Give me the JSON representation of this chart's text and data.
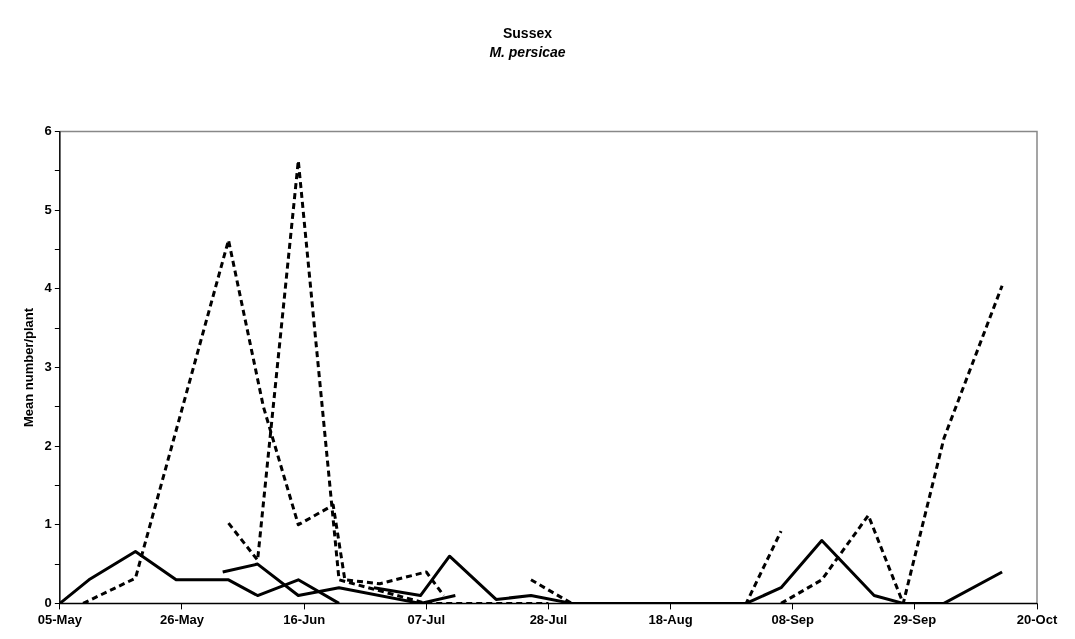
{
  "chart_data": {
    "type": "line",
    "title": "Sussex",
    "subtitle": "M. persicae",
    "ylabel": "Mean number/plant",
    "xlim": [
      "--05-05",
      "--10-20"
    ],
    "xticks": [
      {
        "value": "--05-05",
        "label": "05-May"
      },
      {
        "value": "--05-26",
        "label": "26-May"
      },
      {
        "value": "--06-16",
        "label": "16-Jun"
      },
      {
        "value": "--07-07",
        "label": "07-Jul"
      },
      {
        "value": "--07-28",
        "label": "28-Jul"
      },
      {
        "value": "--08-18",
        "label": "18-Aug"
      },
      {
        "value": "--09-08",
        "label": "08-Sep"
      },
      {
        "value": "--09-29",
        "label": "29-Sep"
      },
      {
        "value": "--10-20",
        "label": "20-Oct"
      }
    ],
    "ylim": [
      0,
      6
    ],
    "yticks": [
      0,
      {
        "value": 0.5,
        "label": null
      },
      1,
      {
        "value": 1.5,
        "label": null
      },
      2,
      {
        "value": 2.5,
        "label": null
      },
      3,
      {
        "value": 3.5,
        "label": null
      },
      4,
      {
        "value": 4.5,
        "label": null
      },
      5,
      {
        "value": 5.5,
        "label": null
      },
      6
    ],
    "grid": false,
    "legend": false,
    "marker": "none",
    "series": [
      {
        "color": "#000000",
        "line_style": "solid",
        "x": [
          "--05-05",
          "--05-10",
          "--05-18",
          "--05-25",
          "--06-03",
          "--06-08",
          "--06-15",
          "--06-22"
        ],
        "values": [
          0,
          0.3,
          0.66,
          0.3,
          0.3,
          0.1,
          0.3,
          0
        ]
      },
      {
        "color": "#000000",
        "line_style": "solid",
        "x": [
          "--06-02",
          "--06-08",
          "--06-15",
          "--06-22",
          "--07-06",
          "--07-12"
        ],
        "values": [
          0.4,
          0.5,
          0.1,
          0.2,
          0,
          0.1
        ]
      },
      {
        "color": "#000000",
        "line_style": "solid",
        "x": [
          "--06-28",
          "--07-06",
          "--07-11",
          "--07-19",
          "--07-25",
          "--08-01",
          "--08-08",
          "--08-15",
          "--08-22",
          "--08-31",
          "--09-06",
          "--09-13",
          "--09-22",
          "--09-27",
          "--10-04",
          "--10-14"
        ],
        "values": [
          0.2,
          0.1,
          0.6,
          0.05,
          0.1,
          0,
          0,
          0,
          0,
          0,
          0.2,
          0.8,
          0.1,
          0,
          0,
          0.4
        ]
      },
      {
        "color": "#000000",
        "line_style": "dashed",
        "x": [
          "--05-09",
          "--05-18",
          "--06-03",
          "--06-09",
          "--06-15",
          "--06-21",
          "--06-23",
          "--06-29",
          "--07-07",
          "--07-10"
        ],
        "values": [
          0,
          0.32,
          4.62,
          2.5,
          1,
          1.25,
          0.3,
          0.25,
          0.4,
          0.1
        ]
      },
      {
        "color": "#000000",
        "line_style": "dashed",
        "x": [
          "--06-03",
          "--06-08",
          "--06-15",
          "--06-22",
          "--07-07",
          "--07-14",
          "--07-21",
          "--07-28"
        ],
        "values": [
          1.02,
          0.55,
          5.63,
          0.3,
          0,
          0,
          0,
          0
        ]
      },
      {
        "color": "#000000",
        "line_style": "dashed",
        "x": [
          "--07-25",
          "--08-01",
          "--08-08",
          "--08-15",
          "--08-22",
          "--08-31",
          "--09-06"
        ],
        "values": [
          0.3,
          0,
          0,
          0,
          0,
          0,
          0.92
        ]
      },
      {
        "color": "#000000",
        "line_style": "dashed",
        "x": [
          "--09-06",
          "--09-13",
          "--09-21",
          "--09-27",
          "--10-04",
          "--10-14"
        ],
        "values": [
          0,
          0.3,
          1.12,
          0,
          2.1,
          4.04
        ]
      }
    ]
  }
}
